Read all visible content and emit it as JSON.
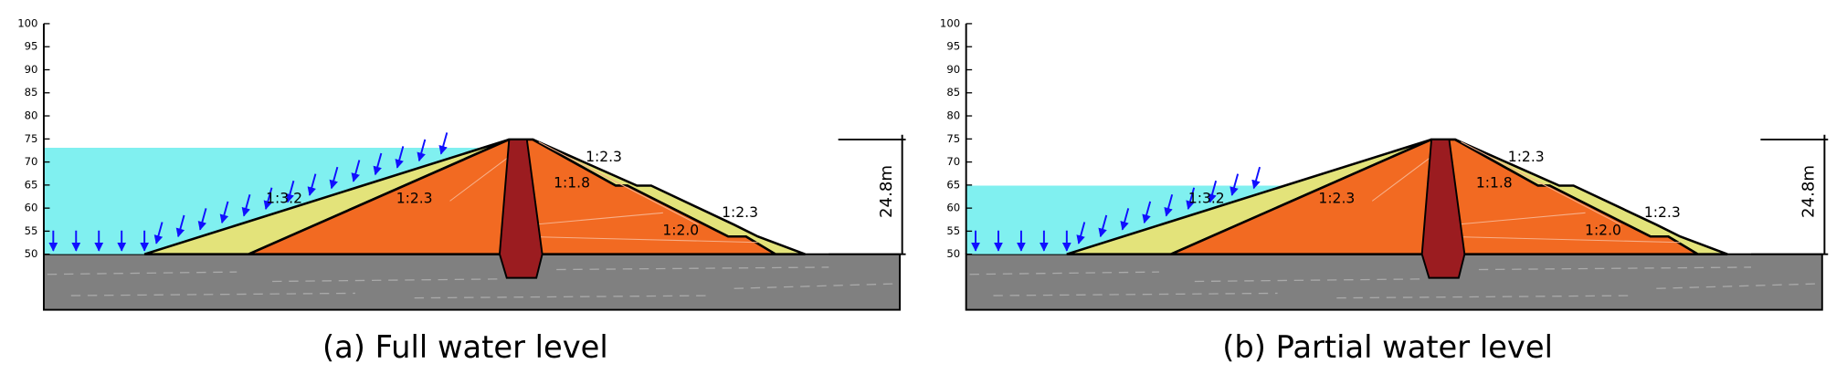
{
  "panels": [
    {
      "caption": "(a) Full water level",
      "yticks": [
        100,
        95,
        90,
        85,
        80,
        75,
        70,
        65,
        60,
        55,
        50
      ],
      "slopes": [
        "1:3.2",
        "1:2.3",
        "1:2.3",
        "1:1.8",
        "1:2.0",
        "1:2.3"
      ],
      "height": "24.8m"
    },
    {
      "caption": "(b) Partial water level",
      "yticks": [
        100,
        95,
        90,
        85,
        80,
        75,
        70,
        65,
        60,
        55,
        50
      ],
      "slopes": [
        "1:3.2",
        "1:2.3",
        "1:2.3",
        "1:1.8",
        "1:2.0",
        "1:2.3"
      ],
      "height": "24.8m"
    }
  ]
}
